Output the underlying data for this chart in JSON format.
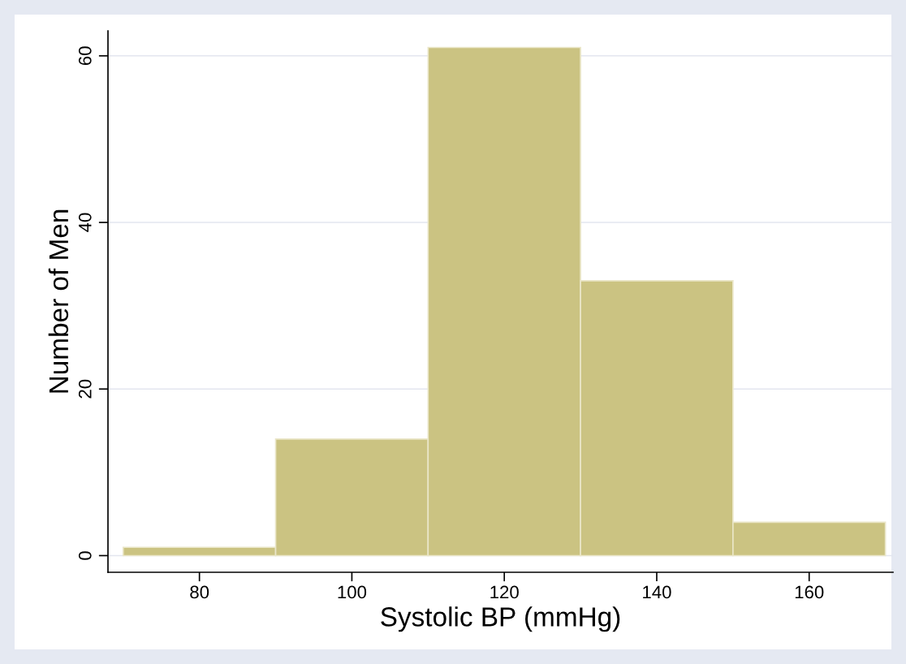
{
  "chart_data": {
    "type": "histogram",
    "xlabel": "Systolic BP (mmHg)",
    "ylabel": "Number of Men",
    "bins": [
      70,
      90,
      110,
      130,
      150,
      170
    ],
    "values": [
      1,
      14,
      61,
      33,
      4
    ],
    "color": "#cbc382",
    "xlim": [
      68,
      171
    ],
    "ylim": [
      -2,
      63
    ],
    "xticks": [
      80,
      100,
      120,
      140,
      160
    ],
    "yticks": [
      0,
      20,
      40,
      60
    ],
    "grid": "y"
  }
}
